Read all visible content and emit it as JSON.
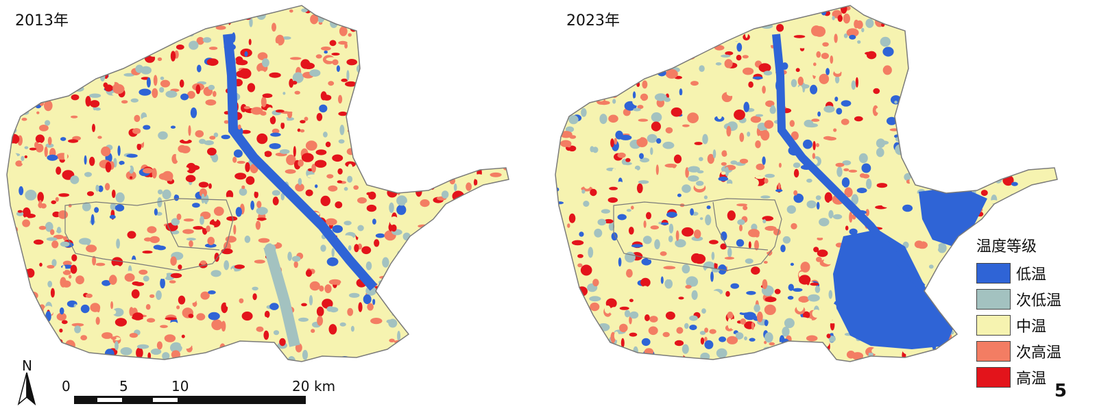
{
  "panels": [
    {
      "id": "left",
      "title": "2013年"
    },
    {
      "id": "right",
      "title": "2023年"
    }
  ],
  "legend": {
    "title": "温度等级",
    "items": [
      {
        "label": "低温",
        "color": "#2f64d6"
      },
      {
        "label": "次低温",
        "color": "#a3c2c0"
      },
      {
        "label": "中温",
        "color": "#f6f3b0"
      },
      {
        "label": "次高温",
        "color": "#f37d63"
      },
      {
        "label": "高温",
        "color": "#e3141b"
      }
    ]
  },
  "scale_bar": {
    "ticks": [
      "0",
      "5",
      "10",
      "20"
    ],
    "unit": "km"
  },
  "north_arrow": {
    "label": "N"
  },
  "panel_number": "5",
  "colors": {
    "outline": "#7a7a7a"
  }
}
